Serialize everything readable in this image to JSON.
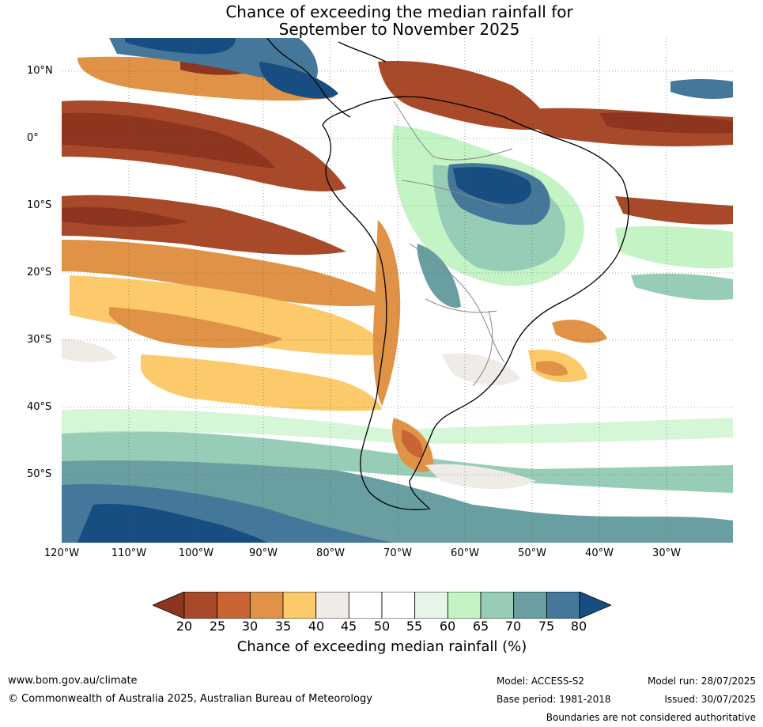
{
  "title": {
    "line1": "Chance of exceeding the median rainfall for",
    "line2": "September to November 2025"
  },
  "axes": {
    "lat_labels": [
      "10°N",
      "0°",
      "10°S",
      "20°S",
      "30°S",
      "40°S",
      "50°S"
    ],
    "lon_labels": [
      "120°W",
      "110°W",
      "100°W",
      "90°W",
      "80°W",
      "70°W",
      "60°W",
      "50°W",
      "40°W",
      "30°W"
    ]
  },
  "colorbar": {
    "ticks": [
      "20",
      "25",
      "30",
      "35",
      "40",
      "45",
      "50",
      "55",
      "60",
      "65",
      "70",
      "75",
      "80"
    ],
    "colors": [
      "#8e3520",
      "#a84a2a",
      "#c96434",
      "#e09346",
      "#fcca6a",
      "#efebe7",
      "#ffffff",
      "#ffffff",
      "#e6f5e8",
      "#c4f4c6",
      "#97cdb6",
      "#6a9fa1",
      "#45779a",
      "#174d80"
    ],
    "label": "Chance of exceeding median rainfall (%)"
  },
  "footer": {
    "url": "www.bom.gov.au/climate",
    "copyright": "© Commonwealth of Australia 2025, Australian Bureau of Meteorology",
    "model": "Model: ACCESS-S2",
    "base_period": "Base period: 1981-2018",
    "model_run": "Model run: 28/07/2025",
    "issued": "Issued: 30/07/2025",
    "disclaimer": "Boundaries are not considered authoritative"
  }
}
